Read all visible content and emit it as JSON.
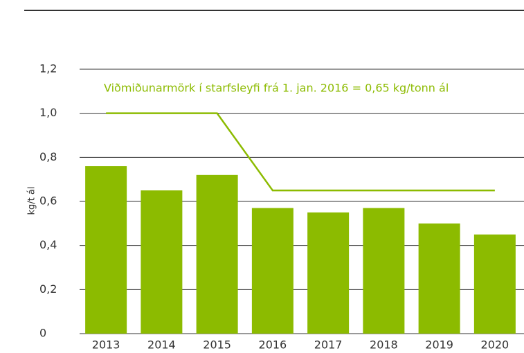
{
  "chart_data": {
    "type": "bar",
    "y_label": "kg/t ál",
    "annotation": "Viðmiðunarmörk í starfsleyfi frá 1. jan. 2016  = 0,65 kg/tonn ál",
    "categories": [
      "2013",
      "2014",
      "2015",
      "2016",
      "2017",
      "2018",
      "2019",
      "2020"
    ],
    "series": [
      {
        "type": "bar",
        "color": "#8cbb00",
        "values": [
          0.76,
          0.65,
          0.72,
          0.57,
          0.55,
          0.57,
          0.5,
          0.45
        ]
      },
      {
        "type": "line",
        "color": "#8cbb00",
        "values": [
          1.0,
          1.0,
          1.0,
          0.65,
          0.65,
          0.65,
          0.65,
          0.65
        ]
      }
    ],
    "ylim": [
      0,
      1.2
    ],
    "yticks": [
      0,
      {
        "value": 0.2,
        "label": "0,2"
      },
      {
        "value": 0.4,
        "label": "0,4"
      },
      {
        "value": 0.6,
        "label": "0,6"
      },
      {
        "value": 0.8,
        "label": "0,8"
      },
      {
        "value": 1.0,
        "label": "1,0"
      },
      {
        "value": 1.2,
        "label": "1,2"
      }
    ],
    "grid": true
  }
}
